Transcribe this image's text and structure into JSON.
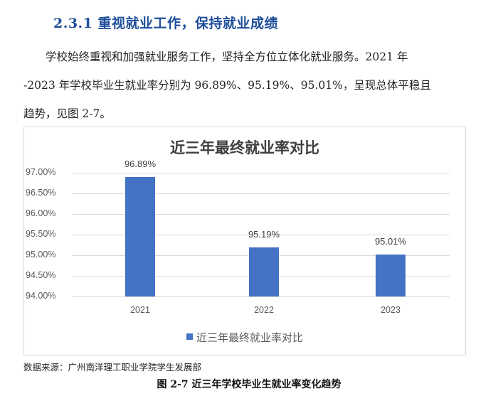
{
  "heading": "2.3.1 重视就业工作，保持就业成绩",
  "paragraph": {
    "lines": [
      "学校始终重视和加强就业服务工作，坚持全方位立体化就业服务。2021 年",
      "-2023 年学校毕业生就业率分别为 96.89%、95.19%、95.01%，呈现总体平稳且",
      "趋势，见图 2-7。"
    ]
  },
  "chart": {
    "title": "近三年最终就业率对比",
    "legend_label": "近三年最终就业率对比",
    "bar_color": "#4472C4",
    "y_ticks": [
      "97.00%",
      "96.50%",
      "96.00%",
      "95.50%",
      "95.00%",
      "94.50%",
      "94.00%"
    ],
    "x_ticks": [
      "2021",
      "2022",
      "2023"
    ],
    "data_labels": [
      "96.89%",
      "95.19%",
      "95.01%"
    ]
  },
  "source_note": "数据来源：广州南洋理工职业学院学生发展部",
  "caption": "图 2-7 近三年学校毕业生就业率变化趋势",
  "chart_data": {
    "type": "bar",
    "title": "近三年最终就业率对比",
    "categories": [
      "2021",
      "2022",
      "2023"
    ],
    "series": [
      {
        "name": "近三年最终就业率对比",
        "values": [
          96.89,
          95.19,
          95.01
        ],
        "color": "#4472C4"
      }
    ],
    "data_labels": [
      "96.89%",
      "95.19%",
      "95.01%"
    ],
    "xlabel": "",
    "ylabel": "",
    "ylim": [
      94.0,
      97.0
    ],
    "y_tick_step": 0.5,
    "y_tick_labels": [
      "94.00%",
      "94.50%",
      "95.00%",
      "95.50%",
      "96.00%",
      "96.50%",
      "97.00%"
    ],
    "grid": true,
    "legend_position": "bottom"
  }
}
